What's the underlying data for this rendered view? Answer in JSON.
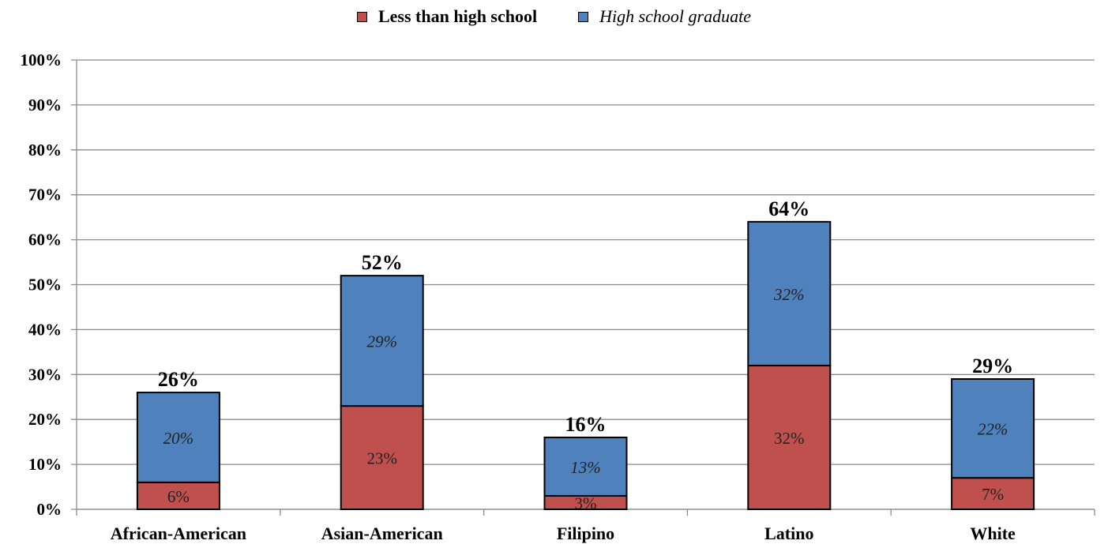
{
  "chart_data": {
    "type": "bar",
    "stacked": true,
    "categories": [
      "African-American",
      "Asian-American",
      "Filipino",
      "Latino",
      "White"
    ],
    "series": [
      {
        "name": "Less than high school",
        "values": [
          6,
          23,
          3,
          32,
          7
        ],
        "labels": [
          "6%",
          "23%",
          "3%",
          "32%",
          "7%"
        ],
        "color": "#C0504D"
      },
      {
        "name": "High school graduate",
        "values": [
          20,
          29,
          13,
          32,
          22
        ],
        "labels": [
          "20%",
          "29%",
          "13%",
          "32%",
          "22%"
        ],
        "color": "#4F81BD"
      }
    ],
    "totals": [
      26,
      52,
      16,
      64,
      29
    ],
    "total_labels": [
      "26%",
      "52%",
      "16%",
      "64%",
      "29%"
    ],
    "yticks": [
      "0%",
      "10%",
      "20%",
      "30%",
      "40%",
      "50%",
      "60%",
      "70%",
      "80%",
      "90%",
      "100%"
    ],
    "ylim": [
      0,
      100
    ],
    "grid": true,
    "legend_position": "top-center"
  }
}
